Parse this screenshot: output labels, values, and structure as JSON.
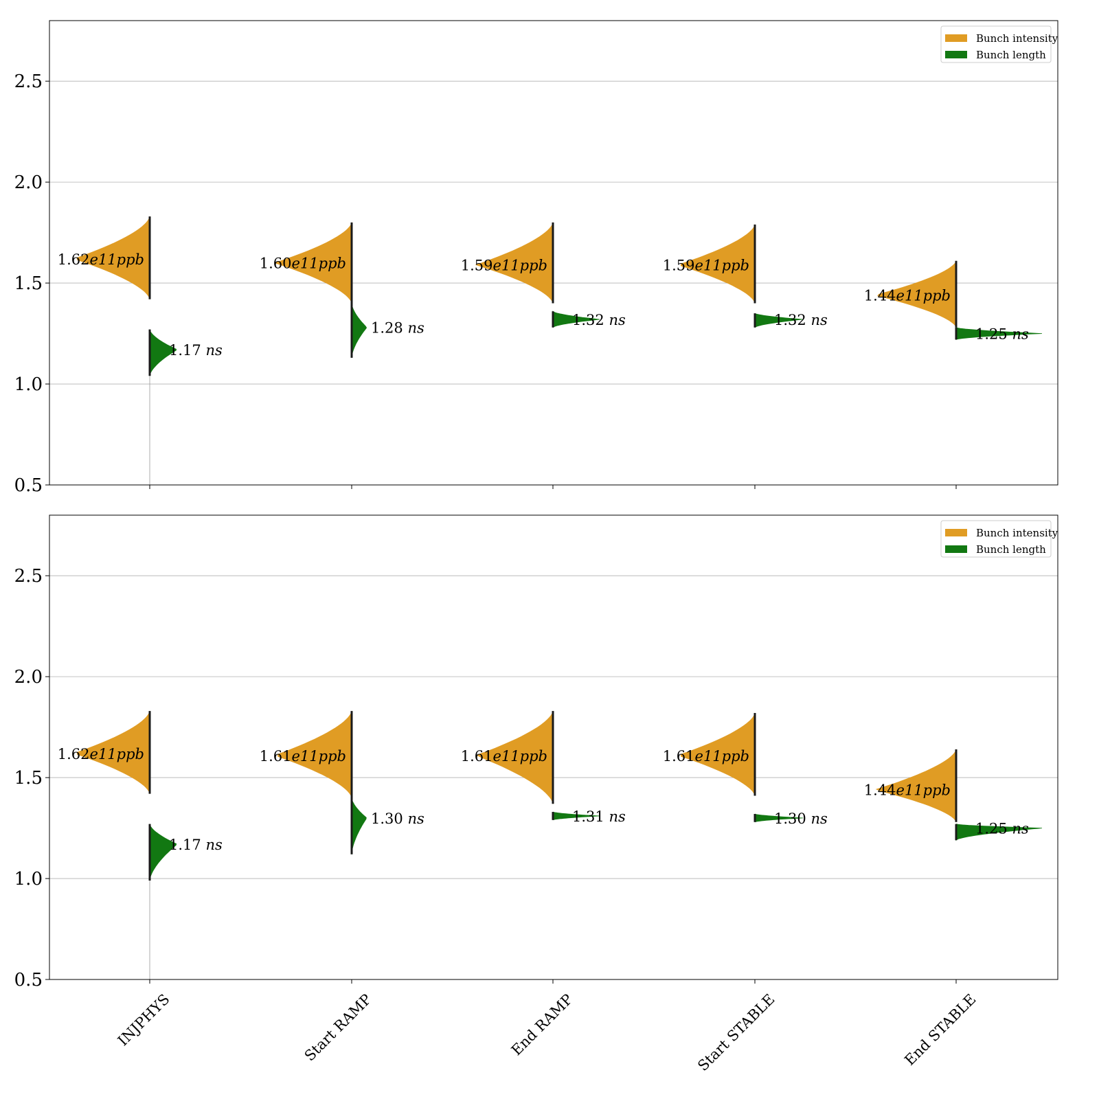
{
  "chart_data": [
    {
      "type": "violin",
      "categories": [
        "INJPHYS",
        "Start RAMP",
        "End RAMP",
        "Start STABLE",
        "End STABLE"
      ],
      "ylim": [
        0.5,
        2.8
      ],
      "yticks": [
        0.5,
        1.0,
        1.5,
        2.0,
        2.5
      ],
      "grid": "horizontal",
      "legend_position": "top-right",
      "series": [
        {
          "name": "Bunch intensity",
          "color": "#e09c24",
          "side": "left",
          "centers": [
            1.62,
            1.6,
            1.59,
            1.59,
            1.44
          ],
          "labels": [
            "1.62e11ppb",
            "1.60e11ppb",
            "1.59e11ppb",
            "1.59e11ppb",
            "1.44e11ppb"
          ],
          "ranges": [
            [
              1.42,
              1.83
            ],
            [
              1.4,
              1.8
            ],
            [
              1.4,
              1.8
            ],
            [
              1.4,
              1.79
            ],
            [
              1.28,
              1.61
            ]
          ]
        },
        {
          "name": "Bunch length",
          "color": "#127812",
          "side": "right",
          "centers": [
            1.17,
            1.28,
            1.32,
            1.32,
            1.25
          ],
          "labels": [
            "1.17 ns",
            "1.28 ns",
            "1.32 ns",
            "1.32 ns",
            "1.25 ns"
          ],
          "ranges": [
            [
              1.04,
              1.27
            ],
            [
              1.13,
              1.4
            ],
            [
              1.28,
              1.36
            ],
            [
              1.28,
              1.35
            ],
            [
              1.22,
              1.28
            ]
          ]
        }
      ]
    },
    {
      "type": "violin",
      "categories": [
        "INJPHYS",
        "Start RAMP",
        "End RAMP",
        "Start STABLE",
        "End STABLE"
      ],
      "ylim": [
        0.5,
        2.8
      ],
      "yticks": [
        0.5,
        1.0,
        1.5,
        2.0,
        2.5
      ],
      "grid": "horizontal",
      "legend_position": "top-right",
      "series": [
        {
          "name": "Bunch intensity",
          "color": "#e09c24",
          "side": "left",
          "centers": [
            1.62,
            1.61,
            1.61,
            1.61,
            1.44
          ],
          "labels": [
            "1.62e11ppb",
            "1.61e11ppb",
            "1.61e11ppb",
            "1.61e11ppb",
            "1.44e11ppb"
          ],
          "ranges": [
            [
              1.42,
              1.83
            ],
            [
              1.4,
              1.83
            ],
            [
              1.37,
              1.83
            ],
            [
              1.41,
              1.82
            ],
            [
              1.28,
              1.64
            ]
          ]
        },
        {
          "name": "Bunch length",
          "color": "#127812",
          "side": "right",
          "centers": [
            1.17,
            1.3,
            1.31,
            1.3,
            1.25
          ],
          "labels": [
            "1.17 ns",
            "1.30 ns",
            "1.31 ns",
            "1.30 ns",
            "1.25 ns"
          ],
          "ranges": [
            [
              0.99,
              1.27
            ],
            [
              1.12,
              1.4
            ],
            [
              1.29,
              1.33
            ],
            [
              1.28,
              1.32
            ],
            [
              1.19,
              1.27
            ]
          ]
        }
      ]
    }
  ]
}
